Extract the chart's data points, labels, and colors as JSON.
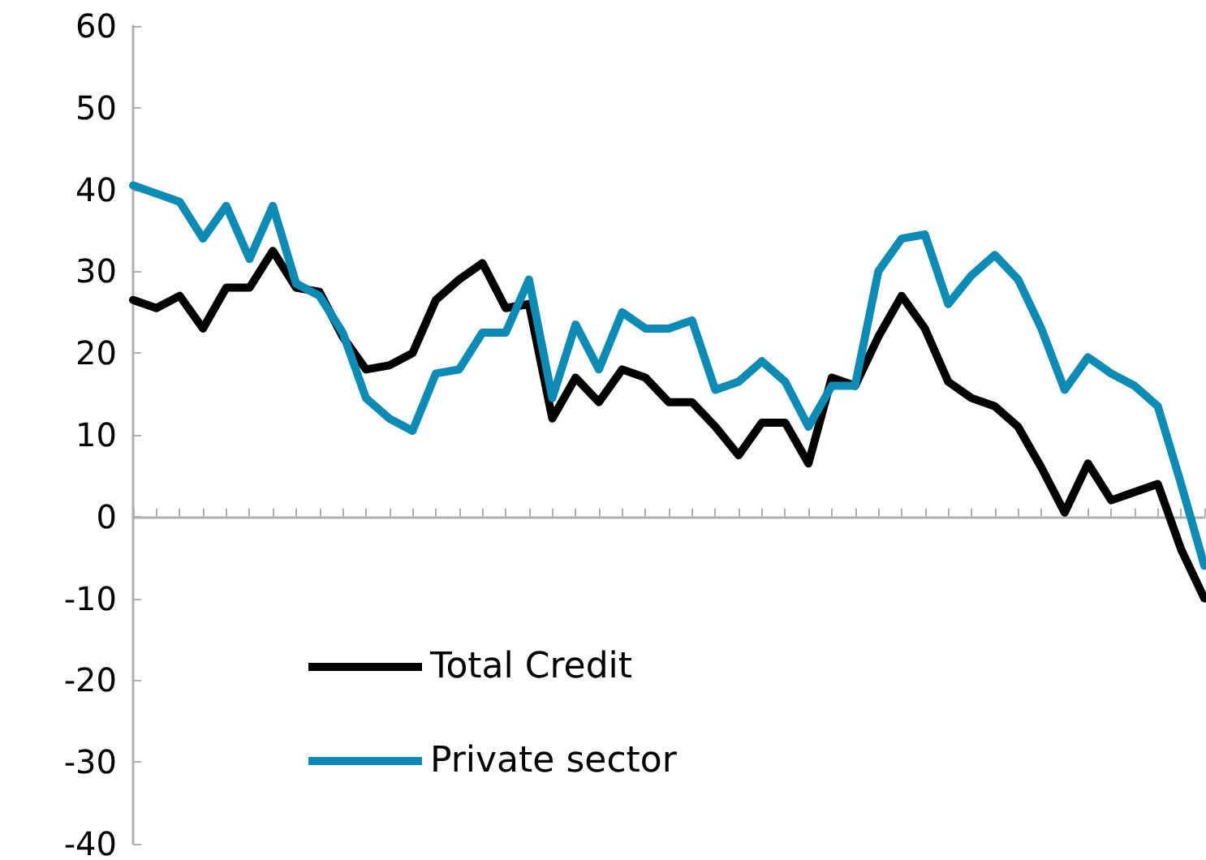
{
  "chart_data": {
    "type": "line",
    "categories": [
      null,
      null,
      null,
      null,
      null,
      null,
      null,
      null,
      null,
      null,
      null,
      null,
      null,
      null,
      null,
      null,
      null,
      null,
      null,
      null,
      null,
      null,
      null,
      null,
      null,
      null,
      null,
      null,
      null,
      null,
      null,
      null,
      null,
      null,
      null,
      null,
      null,
      null,
      null,
      null,
      null,
      null,
      null,
      null,
      null,
      null,
      null
    ],
    "series": [
      {
        "name": "Total Credit",
        "color": "#000000",
        "values": [
          26.5,
          25.5,
          27,
          23,
          28,
          28,
          32.5,
          28,
          27.5,
          22,
          18,
          18.5,
          20,
          26.5,
          29,
          31,
          25.5,
          26,
          12,
          17,
          14,
          18,
          17,
          14,
          14,
          11,
          7.5,
          11.5,
          11.5,
          6.5,
          17,
          16,
          22,
          27,
          23,
          16.5,
          14.5,
          13.5,
          11,
          6,
          0.5,
          6.5,
          2,
          3,
          4,
          -4,
          -10
        ]
      },
      {
        "name": "Private sector",
        "color": "#0e8bb5",
        "values": [
          40.5,
          39.5,
          38.5,
          34,
          38,
          31.5,
          38,
          28.5,
          27,
          22.5,
          14.5,
          12,
          10.5,
          17.5,
          18,
          22.5,
          22.5,
          29,
          14.5,
          23.5,
          18,
          25,
          23,
          23,
          24,
          15.5,
          16.5,
          19,
          16.5,
          11,
          16,
          16,
          30,
          34,
          34.5,
          26,
          29.5,
          32,
          29,
          23,
          15.5,
          19.5,
          17.5,
          16,
          13.5,
          4,
          -6
        ]
      }
    ],
    "ylim": [
      -40,
      60
    ],
    "yticks": [
      -40,
      -30,
      -20,
      -10,
      0,
      10,
      20,
      30,
      40,
      50,
      60
    ],
    "legend": "bottom left",
    "marker": "none",
    "line_style": "solid",
    "tick_labels": "y"
  }
}
